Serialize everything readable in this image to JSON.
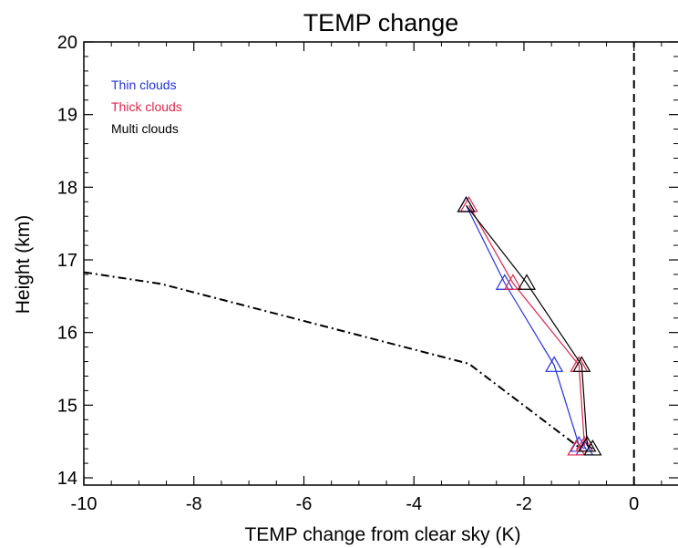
{
  "chart_data": {
    "type": "line",
    "title": "TEMP change",
    "xlabel": "TEMP change from clear sky (K)",
    "ylabel": "Height (km)",
    "xlim": [
      -10,
      0.8
    ],
    "ylim": [
      13.9,
      20
    ],
    "xticks": [
      -10,
      -8,
      -6,
      -4,
      -2,
      0
    ],
    "xtick_labels": [
      "-10",
      "-8",
      "-6",
      "-4",
      "-2",
      "0"
    ],
    "yticks": [
      14,
      15,
      16,
      17,
      18,
      19,
      20
    ],
    "ytick_labels": [
      "14",
      "15",
      "16",
      "17",
      "18",
      "19",
      "20"
    ],
    "grid": false,
    "legend_position": "top-left",
    "series": [
      {
        "name": "Thin clouds",
        "color": "#2233dd",
        "marker": "triangle",
        "x": [
          -3.05,
          -2.35,
          -1.45,
          -1.0,
          -0.9
        ],
        "y": [
          17.75,
          16.68,
          15.55,
          14.45,
          14.4
        ]
      },
      {
        "name": "Thick clouds",
        "color": "#e0254a",
        "marker": "triangle",
        "x": [
          -3.0,
          -2.2,
          -1.0,
          -0.9,
          -1.05
        ],
        "y": [
          17.75,
          16.68,
          15.55,
          14.45,
          14.4
        ]
      },
      {
        "name": "Multi clouds",
        "color": "#000000",
        "marker": "triangle",
        "x": [
          -3.05,
          -1.95,
          -0.95,
          -0.85,
          -0.75
        ],
        "y": [
          17.75,
          16.68,
          15.55,
          14.45,
          14.4
        ]
      }
    ],
    "reference_lines": [
      {
        "style": "dash-dot",
        "color": "#000000",
        "x": [
          -10,
          -8.6,
          -3.0,
          -1.0
        ],
        "y": [
          16.83,
          16.67,
          15.57,
          14.42
        ]
      },
      {
        "style": "dashed",
        "color": "#000000",
        "x": [
          0,
          0
        ],
        "y": [
          13.9,
          20
        ]
      }
    ]
  }
}
